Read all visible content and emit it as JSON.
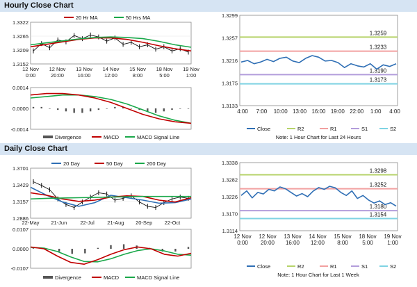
{
  "sections": {
    "hourly_title": "Hourly Close Chart",
    "daily_title": "Daily Close Chart"
  },
  "colors": {
    "red": "#c00000",
    "green": "#1aa84a",
    "blue": "#2f6fb5",
    "black": "#111111",
    "r2": "#b6d36a",
    "r1": "#f2a0a0",
    "s1": "#b39ddb",
    "s2": "#7fd3e3",
    "divergence": "#555555"
  },
  "chart_data": [
    {
      "id": "hourly-price",
      "type": "line",
      "legend": [
        "20 Hr MA",
        "50 Hrs MA"
      ],
      "yticks": [
        "1.3322",
        "1.3265",
        "1.3209",
        "1.3152"
      ],
      "xticks": [
        [
          "12 Nov",
          "0:00"
        ],
        [
          "12 Nov",
          "20:00"
        ],
        [
          "13 Nov",
          "16:00"
        ],
        [
          "14 Nov",
          "12:00"
        ],
        [
          "15 Nov",
          "8:00"
        ],
        [
          "18 Nov",
          "5:00"
        ],
        [
          "19 Nov",
          "1:00"
        ]
      ],
      "ylim": [
        1.3152,
        1.3322
      ],
      "series": [
        {
          "name": "20 Hr MA",
          "color": "red",
          "values": [
            1.3222,
            1.3232,
            1.3242,
            1.3252,
            1.3258,
            1.3258,
            1.3252,
            1.324,
            1.3226,
            1.3214,
            1.3205
          ]
        },
        {
          "name": "50 Hrs MA",
          "color": "green",
          "values": [
            1.323,
            1.3238,
            1.3246,
            1.3254,
            1.326,
            1.3262,
            1.326,
            1.3255,
            1.3244,
            1.323,
            1.322
          ]
        }
      ],
      "price": [
        1.3205,
        1.3235,
        1.3218,
        1.325,
        1.3242,
        1.3268,
        1.3255,
        1.327,
        1.3262,
        1.3245,
        1.3258,
        1.3232,
        1.324,
        1.3222,
        1.323,
        1.3212,
        1.3222,
        1.3205,
        1.3214,
        1.32
      ]
    },
    {
      "id": "hourly-macd",
      "type": "line",
      "yticks": [
        "0.0014",
        "0.0000",
        "-0.0014"
      ],
      "ylim": [
        -0.0014,
        0.0014
      ],
      "legend": [
        "Divergence",
        "MACD",
        "MACD Signal Line"
      ],
      "macd": [
        0.0009,
        0.001,
        0.001,
        0.0009,
        0.0007,
        0.0004,
        0.0,
        -0.0004,
        -0.0007,
        -0.0009,
        -0.001
      ],
      "signal": [
        0.0007,
        0.0008,
        0.0009,
        0.0009,
        0.0008,
        0.0006,
        0.0003,
        -0.0001,
        -0.0005,
        -0.0008,
        -0.001
      ],
      "divergence": [
        0.0001,
        0.0001,
        0.0,
        -0.0001,
        -0.0002,
        -0.0003,
        -0.0003,
        -0.0002,
        -0.0001,
        0.0,
        0.0001,
        0.0001,
        0.0,
        -0.0001,
        -0.0002,
        -0.0003,
        -0.0002,
        -0.0001,
        0.0,
        0.0
      ]
    },
    {
      "id": "hourly-pivot",
      "type": "line",
      "yticks": [
        "1.3299",
        "1.3257",
        "1.3216",
        "1.3175",
        "1.3133"
      ],
      "ylim": [
        1.3133,
        1.3299
      ],
      "xticks": [
        "4:00",
        "7:00",
        "10:00",
        "13:00",
        "16:00",
        "19:00",
        "22:00",
        "1:00",
        "4:00"
      ],
      "levels": [
        {
          "name": "R2",
          "value": 1.3259,
          "label": "1.3259",
          "color": "r2"
        },
        {
          "name": "R1",
          "value": 1.3233,
          "label": "1.3233",
          "color": "r1"
        },
        {
          "name": "S1",
          "value": 1.319,
          "label": "1.3190",
          "color": "s1"
        },
        {
          "name": "S2",
          "value": 1.3173,
          "label": "1.3173",
          "color": "s2"
        }
      ],
      "close": [
        1.3213,
        1.3216,
        1.321,
        1.3213,
        1.3218,
        1.3214,
        1.322,
        1.3222,
        1.3215,
        1.3212,
        1.322,
        1.3225,
        1.3222,
        1.3215,
        1.3216,
        1.3212,
        1.3203,
        1.321,
        1.3206,
        1.3204,
        1.321,
        1.32,
        1.3208,
        1.3205,
        1.321
      ],
      "legend": [
        "Close",
        "R2",
        "R1",
        "S1",
        "S2"
      ],
      "note": "Note: 1 Hour Chart for Last 24 Hours"
    },
    {
      "id": "daily-price",
      "type": "line",
      "legend": [
        "20 Day",
        "50 Day",
        "200 Day"
      ],
      "yticks": [
        "1.3701",
        "1.3429",
        "1.3157",
        "1.2886"
      ],
      "ylim": [
        1.2886,
        1.3701
      ],
      "xticks": [
        "22-May",
        "21-Jun",
        "22-Jul",
        "21-Aug",
        "20-Sep",
        "22-Oct"
      ],
      "series": [
        {
          "name": "20 Day",
          "color": "blue",
          "values": [
            1.339,
            1.326,
            1.315,
            1.308,
            1.314,
            1.326,
            1.322,
            1.318,
            1.313,
            1.314,
            1.32
          ]
        },
        {
          "name": "50 Day",
          "color": "red",
          "values": [
            1.33,
            1.326,
            1.32,
            1.316,
            1.318,
            1.323,
            1.325,
            1.324,
            1.318,
            1.315,
            1.322
          ]
        },
        {
          "name": "200 Day",
          "color": "green",
          "values": [
            1.32,
            1.321,
            1.3215,
            1.322,
            1.3225,
            1.323,
            1.3235,
            1.324,
            1.324,
            1.324,
            1.324
          ]
        }
      ],
      "price": [
        1.348,
        1.342,
        1.335,
        1.32,
        1.311,
        1.306,
        1.315,
        1.323,
        1.33,
        1.328,
        1.318,
        1.321,
        1.325,
        1.315,
        1.308,
        1.306,
        1.314,
        1.32,
        1.323,
        1.321
      ]
    },
    {
      "id": "daily-macd",
      "type": "line",
      "yticks": [
        "0.0107",
        "0.0000",
        "-0.0107"
      ],
      "ylim": [
        -0.0107,
        0.0107
      ],
      "legend": [
        "Divergence",
        "MACD",
        "MACD Signal Line"
      ],
      "macd": [
        0.001,
        0.0,
        -0.004,
        -0.0075,
        -0.0085,
        -0.006,
        -0.003,
        -0.0005,
        0.001,
        0.0,
        -0.003,
        -0.004,
        -0.0025
      ],
      "signal": [
        0.0008,
        0.0004,
        -0.0015,
        -0.0045,
        -0.007,
        -0.0072,
        -0.0055,
        -0.003,
        -0.001,
        0.0,
        -0.0012,
        -0.003,
        -0.0035
      ],
      "divergence": [
        0.0003,
        -0.0002,
        -0.0015,
        -0.0028,
        -0.0025,
        0.0005,
        0.002,
        0.0025,
        0.0018,
        0.0005,
        -0.0015,
        -0.0015,
        0.001
      ]
    },
    {
      "id": "daily-pivot",
      "type": "line",
      "yticks": [
        "1.3338",
        "1.3282",
        "1.3226",
        "1.3170",
        "1.3114"
      ],
      "ylim": [
        1.3114,
        1.3338
      ],
      "xticks": [
        [
          "12 Nov",
          "0:00"
        ],
        [
          "12 Nov",
          "20:00"
        ],
        [
          "13 Nov",
          "16:00"
        ],
        [
          "14 Nov",
          "12:00"
        ],
        [
          "15 Nov",
          "8:00"
        ],
        [
          "18 Nov",
          "5:00"
        ],
        [
          "19 Nov",
          "1:00"
        ]
      ],
      "levels": [
        {
          "name": "R2",
          "value": 1.3298,
          "label": "1.3298",
          "color": "r2"
        },
        {
          "name": "R1",
          "value": 1.3252,
          "label": "1.3252",
          "color": "r1"
        },
        {
          "name": "S1",
          "value": 1.318,
          "label": "1.3180",
          "color": "s1"
        },
        {
          "name": "S2",
          "value": 1.3154,
          "label": "1.3154",
          "color": "s2"
        }
      ],
      "close": [
        1.323,
        1.3245,
        1.3222,
        1.324,
        1.3235,
        1.325,
        1.3245,
        1.3258,
        1.3252,
        1.324,
        1.3228,
        1.3236,
        1.3226,
        1.3244,
        1.3256,
        1.325,
        1.326,
        1.3255,
        1.324,
        1.323,
        1.3245,
        1.322,
        1.323,
        1.3215,
        1.3205,
        1.3212,
        1.32,
        1.3206,
        1.3195
      ],
      "legend": [
        "Close",
        "R2",
        "R1",
        "S1",
        "S2"
      ],
      "note": "Note: 1 Hour Chart for Last 1 Week"
    }
  ]
}
